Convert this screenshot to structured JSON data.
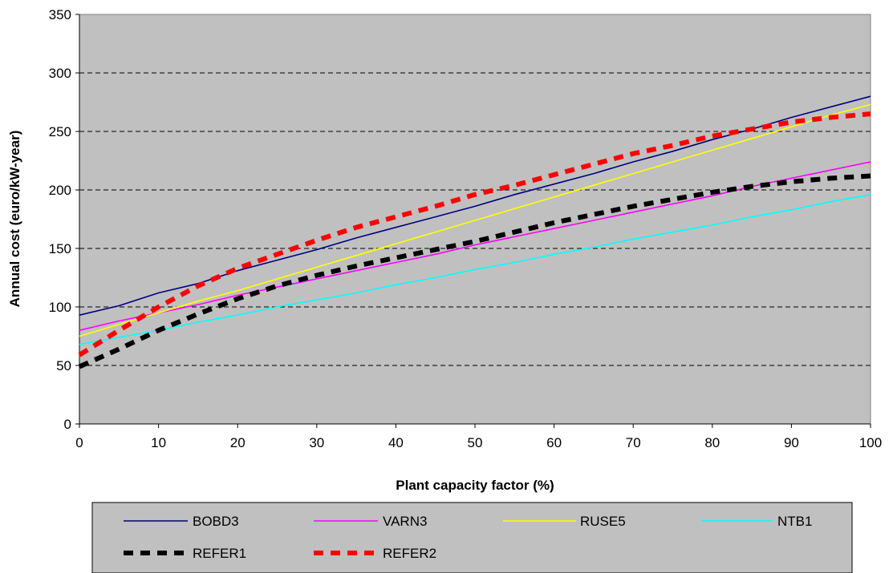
{
  "chart_data": {
    "type": "line",
    "title": "",
    "xlabel": "Plant capacity factor (%)",
    "ylabel": "Annual cost (euro/kW-year)",
    "xlim": [
      0,
      100
    ],
    "ylim": [
      0,
      350
    ],
    "xticks": [
      "0",
      "10",
      "20",
      "30",
      "40",
      "50",
      "60",
      "70",
      "80",
      "90",
      "100"
    ],
    "yticks": [
      "0",
      "50",
      "100",
      "150",
      "200",
      "250",
      "300",
      "350"
    ],
    "grid": "horizontal dashed",
    "legend_position": "bottom",
    "plot_background": "#c0c0c0",
    "x": [
      0,
      5,
      10,
      15,
      20,
      25,
      30,
      35,
      40,
      45,
      50,
      55,
      60,
      65,
      70,
      75,
      80,
      85,
      90,
      95,
      100
    ],
    "series": [
      {
        "name": "BOBD3",
        "color": "#000080",
        "style": "solid",
        "values": [
          93,
          101,
          112,
          120,
          131,
          140,
          149,
          159,
          168,
          177,
          186,
          196,
          205,
          214,
          224,
          233,
          243,
          252,
          262,
          271,
          280
        ]
      },
      {
        "name": "VARN3",
        "color": "#ff00ff",
        "style": "solid",
        "values": [
          80,
          88,
          95,
          102,
          110,
          117,
          124,
          131,
          138,
          145,
          153,
          160,
          167,
          174,
          181,
          188,
          195,
          203,
          210,
          217,
          224
        ]
      },
      {
        "name": "RUSE5",
        "color": "#ffff00",
        "style": "solid",
        "values": [
          75,
          85,
          95,
          105,
          114,
          124,
          134,
          144,
          154,
          164,
          174,
          184,
          194,
          204,
          214,
          224,
          234,
          244,
          254,
          264,
          273
        ]
      },
      {
        "name": "NTB1",
        "color": "#00ffff",
        "style": "solid",
        "values": [
          68,
          74,
          80,
          87,
          93,
          100,
          106,
          112,
          119,
          125,
          132,
          138,
          145,
          151,
          158,
          164,
          170,
          177,
          183,
          190,
          196
        ]
      },
      {
        "name": "REFER1",
        "color": "#000000",
        "style": "dashed",
        "values": [
          49,
          64,
          80,
          94,
          107,
          118,
          127,
          135,
          142,
          149,
          156,
          164,
          172,
          179,
          186,
          192,
          198,
          203,
          207,
          210,
          212
        ]
      },
      {
        "name": "REFER2",
        "color": "#ff0000",
        "style": "dashed",
        "values": [
          59,
          80,
          100,
          118,
          133,
          145,
          157,
          168,
          177,
          186,
          196,
          204,
          213,
          222,
          231,
          238,
          246,
          252,
          258,
          262,
          265
        ]
      }
    ]
  }
}
